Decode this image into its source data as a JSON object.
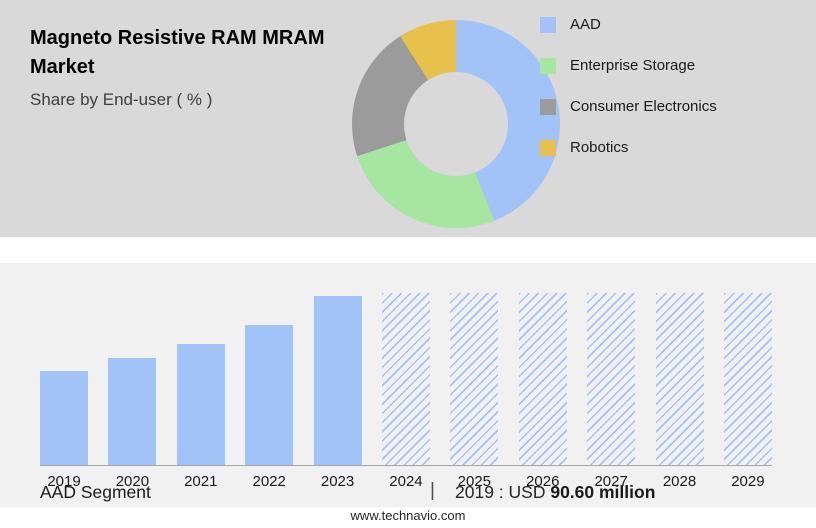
{
  "header": {
    "title": "Magneto Resistive RAM MRAM Market",
    "subtitle": "Share by End-user ( % )"
  },
  "legend": {
    "items": [
      {
        "label": "AAD",
        "color": "#a2c3f7"
      },
      {
        "label": "Enterprise Storage",
        "color": "#a6e6a1"
      },
      {
        "label": "Consumer Electronics",
        "color": "#9b9b9b"
      },
      {
        "label": "Robotics",
        "color": "#e8c14d"
      }
    ]
  },
  "chart_data": [
    {
      "type": "pie",
      "donut": true,
      "title": "Share by End-user ( % )",
      "labels": [
        "AAD",
        "Enterprise Storage",
        "Consumer Electronics",
        "Robotics"
      ],
      "values": [
        44,
        26,
        21,
        9
      ],
      "colors": [
        "#a2c3f7",
        "#a6e6a1",
        "#9b9b9b",
        "#e8c14d"
      ],
      "legend_position": "right",
      "hole_color": "#d9d9d9"
    },
    {
      "type": "bar",
      "title": "AAD Segment",
      "categories": [
        "2019",
        "2020",
        "2021",
        "2022",
        "2023",
        "2024",
        "2025",
        "2026",
        "2027",
        "2028",
        "2029"
      ],
      "series": [
        {
          "name": "AAD",
          "values": [
            90.6,
            103,
            116,
            134,
            162,
            null,
            null,
            null,
            null,
            null,
            null
          ]
        }
      ],
      "forecast_categories": [
        "2024",
        "2025",
        "2026",
        "2027",
        "2028",
        "2029"
      ],
      "ylim": [
        0,
        165
      ],
      "bar_color": "#a2c3f7",
      "grid": false,
      "known_labels": {
        "2019": "USD 90.60 million"
      }
    }
  ],
  "info": {
    "segment_label": "AAD Segment",
    "divider": "|",
    "value_prefix": "2019 : USD",
    "value_amount": "90.60 million"
  },
  "footer": {
    "website": "www.technavio.com"
  }
}
